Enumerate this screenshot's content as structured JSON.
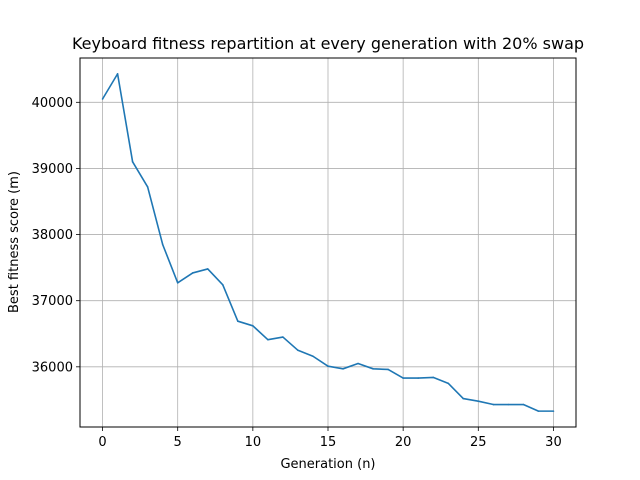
{
  "chart_data": {
    "type": "line",
    "title": "Keyboard fitness repartition at every generation with 20% swap",
    "xlabel": "Generation (n)",
    "ylabel": "Best fitness score (m)",
    "xlim": [
      -1.5,
      31.5
    ],
    "ylim": [
      35090,
      40670
    ],
    "xticks": [
      0,
      5,
      10,
      15,
      20,
      25,
      30
    ],
    "yticks": [
      36000,
      37000,
      38000,
      39000,
      40000
    ],
    "grid": true,
    "line_color": "#1f77b4",
    "series": [
      {
        "x": [
          0,
          1,
          2,
          3,
          4,
          5,
          6,
          7,
          8,
          9,
          10,
          11,
          12,
          13,
          14,
          15,
          16,
          17,
          18,
          19,
          20,
          21,
          22,
          23,
          24,
          25,
          26,
          27,
          28,
          29,
          30
        ],
        "values": [
          40050,
          40430,
          39100,
          38720,
          37850,
          37270,
          37420,
          37480,
          37240,
          36690,
          36620,
          36410,
          36450,
          36250,
          36160,
          36010,
          35970,
          36050,
          35970,
          35960,
          35830,
          35830,
          35840,
          35750,
          35520,
          35480,
          35430,
          35430,
          35430,
          35330,
          35330
        ]
      }
    ]
  }
}
